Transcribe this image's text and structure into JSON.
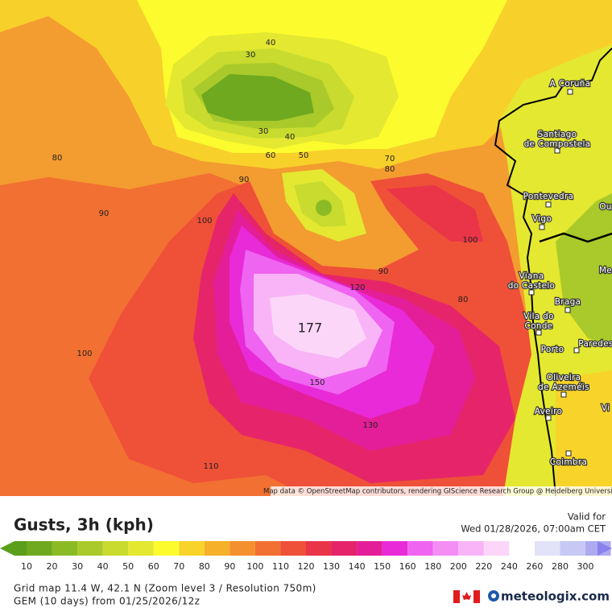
{
  "map": {
    "contour_labels": [
      "40",
      "30",
      "30",
      "40",
      "60",
      "50",
      "70",
      "80",
      "80",
      "90",
      "90",
      "100",
      "100",
      "90",
      "120",
      "80",
      "177",
      "100",
      "150",
      "130",
      "110"
    ],
    "cities": [
      {
        "lines": [
          "A Coruña"
        ]
      },
      {
        "lines": [
          "Santiago",
          "de Compostela"
        ]
      },
      {
        "lines": [
          "Pontevedra"
        ]
      },
      {
        "lines": [
          "Vigo"
        ]
      },
      {
        "lines": [
          "Ou"
        ]
      },
      {
        "lines": [
          "Me"
        ]
      },
      {
        "lines": [
          "Viana",
          "do Castelo"
        ]
      },
      {
        "lines": [
          "Braga"
        ]
      },
      {
        "lines": [
          "Vila do",
          "Conde"
        ]
      },
      {
        "lines": [
          "Porto"
        ]
      },
      {
        "lines": [
          "Paredes"
        ]
      },
      {
        "lines": [
          "Oliveira",
          "de Azeméis"
        ]
      },
      {
        "lines": [
          "Aveiro"
        ]
      },
      {
        "lines": [
          "Vi"
        ]
      },
      {
        "lines": [
          "Coimbra"
        ]
      }
    ],
    "attribution": "Map data © OpenStreetMap contributors, rendering GIScience Research Group @ Heidelberg University"
  },
  "footer": {
    "title": "Gusts, 3h (kph)",
    "valid_label": "Valid for",
    "valid_time": "Wed 01/28/2026, 07:00am CET",
    "legend": {
      "labels": [
        "10",
        "20",
        "30",
        "40",
        "50",
        "60",
        "70",
        "80",
        "90",
        "100",
        "110",
        "120",
        "130",
        "140",
        "150",
        "160",
        "180",
        "200",
        "220",
        "240",
        "260",
        "280",
        "300"
      ],
      "colors": [
        "#5a9e1a",
        "#6fa91f",
        "#8bbb24",
        "#a9ca2a",
        "#c8db2e",
        "#e4e830",
        "#fbfb2e",
        "#f8d42a",
        "#f6b02a",
        "#f5902e",
        "#f27032",
        "#ef5038",
        "#ea3448",
        "#e6246a",
        "#e41e98",
        "#e82ad8",
        "#ef64f0",
        "#f48ef4",
        "#f8b4f6",
        "#fbd6f8",
        "#ffffff",
        "#e2e2f8",
        "#c8c8f4",
        "#aeaaf0",
        "#8a82ec"
      ]
    },
    "info_line1": "Grid map 11.4 W, 42.1 N (Zoom level 3 / Resolution 750m)",
    "info_line2": "GEM (10 days) from  01/25/2026/12z",
    "brand": "meteologix.com"
  }
}
